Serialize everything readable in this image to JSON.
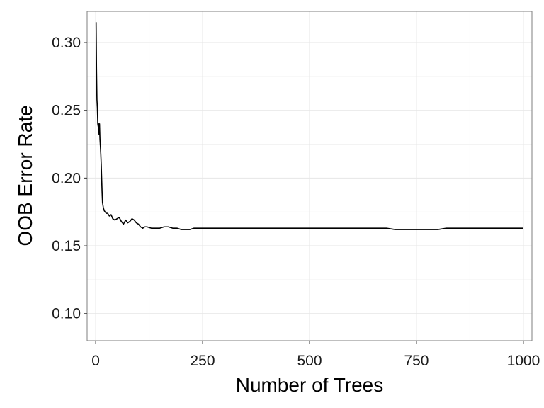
{
  "chart_data": {
    "type": "line",
    "title": "",
    "xlabel": "Number of Trees",
    "ylabel": "OOB Error Rate",
    "xlim": [
      -20,
      1020
    ],
    "ylim": [
      0.08,
      0.323
    ],
    "x_ticks": [
      0,
      250,
      500,
      750,
      1000
    ],
    "x_tick_labels": [
      "0",
      "250",
      "500",
      "750",
      "1000"
    ],
    "y_ticks": [
      0.1,
      0.15,
      0.2,
      0.25,
      0.3
    ],
    "y_tick_labels": [
      "0.10",
      "0.15",
      "0.20",
      "0.25",
      "0.30"
    ],
    "grid": true,
    "legend": "none",
    "colors": {
      "line": "#000000",
      "panel_border": "#7f7f7f",
      "grid_major": "#e6e6e6",
      "grid_minor": "#f3f3f3"
    },
    "series": [
      {
        "x": [
          1,
          2,
          3,
          4,
          5,
          6,
          7,
          8,
          9,
          10,
          11,
          12,
          13,
          14,
          15,
          16,
          18,
          20,
          22,
          25,
          28,
          32,
          36,
          40,
          45,
          50,
          55,
          60,
          65,
          70,
          75,
          80,
          85,
          90,
          95,
          100,
          105,
          110,
          115,
          120,
          130,
          140,
          150,
          160,
          170,
          180,
          190,
          200,
          210,
          220,
          230,
          240,
          250,
          260,
          270,
          280,
          290,
          300,
          320,
          340,
          360,
          380,
          400,
          420,
          440,
          460,
          480,
          500,
          520,
          540,
          560,
          580,
          600,
          620,
          640,
          660,
          680,
          700,
          720,
          740,
          760,
          780,
          800,
          820,
          840,
          860,
          880,
          900,
          920,
          940,
          960,
          980,
          1000
        ],
        "y": [
          0.315,
          0.28,
          0.258,
          0.252,
          0.24,
          0.238,
          0.24,
          0.232,
          0.24,
          0.229,
          0.224,
          0.218,
          0.21,
          0.2,
          0.19,
          0.182,
          0.178,
          0.176,
          0.175,
          0.174,
          0.174,
          0.172,
          0.173,
          0.17,
          0.169,
          0.17,
          0.171,
          0.168,
          0.166,
          0.169,
          0.167,
          0.168,
          0.17,
          0.169,
          0.167,
          0.166,
          0.164,
          0.163,
          0.164,
          0.164,
          0.163,
          0.163,
          0.163,
          0.164,
          0.164,
          0.163,
          0.163,
          0.162,
          0.162,
          0.162,
          0.163,
          0.163,
          0.163,
          0.163,
          0.163,
          0.163,
          0.163,
          0.163,
          0.163,
          0.163,
          0.163,
          0.163,
          0.163,
          0.163,
          0.163,
          0.163,
          0.163,
          0.163,
          0.163,
          0.163,
          0.163,
          0.163,
          0.163,
          0.163,
          0.163,
          0.163,
          0.163,
          0.162,
          0.162,
          0.162,
          0.162,
          0.162,
          0.162,
          0.163,
          0.163,
          0.163,
          0.163,
          0.163,
          0.163,
          0.163,
          0.163,
          0.163,
          0.163
        ]
      }
    ]
  }
}
